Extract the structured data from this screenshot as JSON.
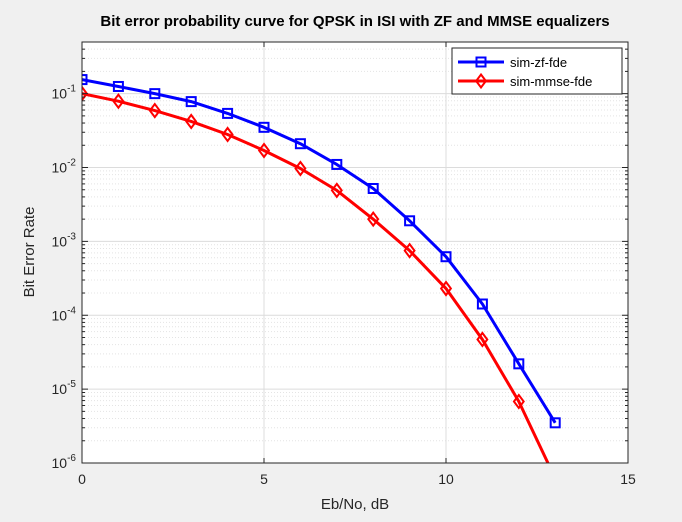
{
  "chart_data": {
    "type": "line",
    "title": "Bit error probability curve for QPSK in ISI with ZF and MMSE equalizers",
    "xlabel": "Eb/No, dB",
    "ylabel": "Bit Error Rate",
    "xlim": [
      0,
      15
    ],
    "ylim": [
      1e-06,
      0.5
    ],
    "yscale": "log",
    "grid": true,
    "minor_grid": true,
    "legend_position": "top-right",
    "x_ticks": [
      0,
      5,
      10,
      15
    ],
    "x_tick_labels": [
      "0",
      "5",
      "10",
      "15"
    ],
    "y_ticks": [
      {
        "value": 1e-06,
        "base": "10",
        "exp": "-6"
      },
      {
        "value": 1e-05,
        "base": "10",
        "exp": "-5"
      },
      {
        "value": 0.0001,
        "base": "10",
        "exp": "-4"
      },
      {
        "value": 0.001,
        "base": "10",
        "exp": "-3"
      },
      {
        "value": 0.01,
        "base": "10",
        "exp": "-2"
      },
      {
        "value": 0.1,
        "base": "10",
        "exp": "-1"
      }
    ],
    "series": [
      {
        "name": "sim-zf-fde",
        "color": "#0000ff",
        "marker": "square",
        "x": [
          0,
          1,
          2,
          3,
          4,
          5,
          6,
          7,
          8,
          9,
          10,
          11,
          12,
          13
        ],
        "y": [
          0.155,
          0.125,
          0.1,
          0.078,
          0.054,
          0.035,
          0.021,
          0.011,
          0.0052,
          0.0019,
          0.00062,
          0.000142,
          2.2e-05,
          3.5e-06
        ]
      },
      {
        "name": "sim-mmse-fde",
        "color": "#ff0000",
        "marker": "diamond",
        "x": [
          0,
          1,
          2,
          3,
          4,
          5,
          6,
          7,
          8,
          9,
          10,
          11,
          12,
          12.8
        ],
        "y": [
          0.1,
          0.079,
          0.059,
          0.042,
          0.028,
          0.017,
          0.0097,
          0.0049,
          0.002,
          0.00075,
          0.00023,
          4.7e-05,
          6.8e-06,
          1e-06
        ],
        "marker_count": 13
      }
    ]
  }
}
